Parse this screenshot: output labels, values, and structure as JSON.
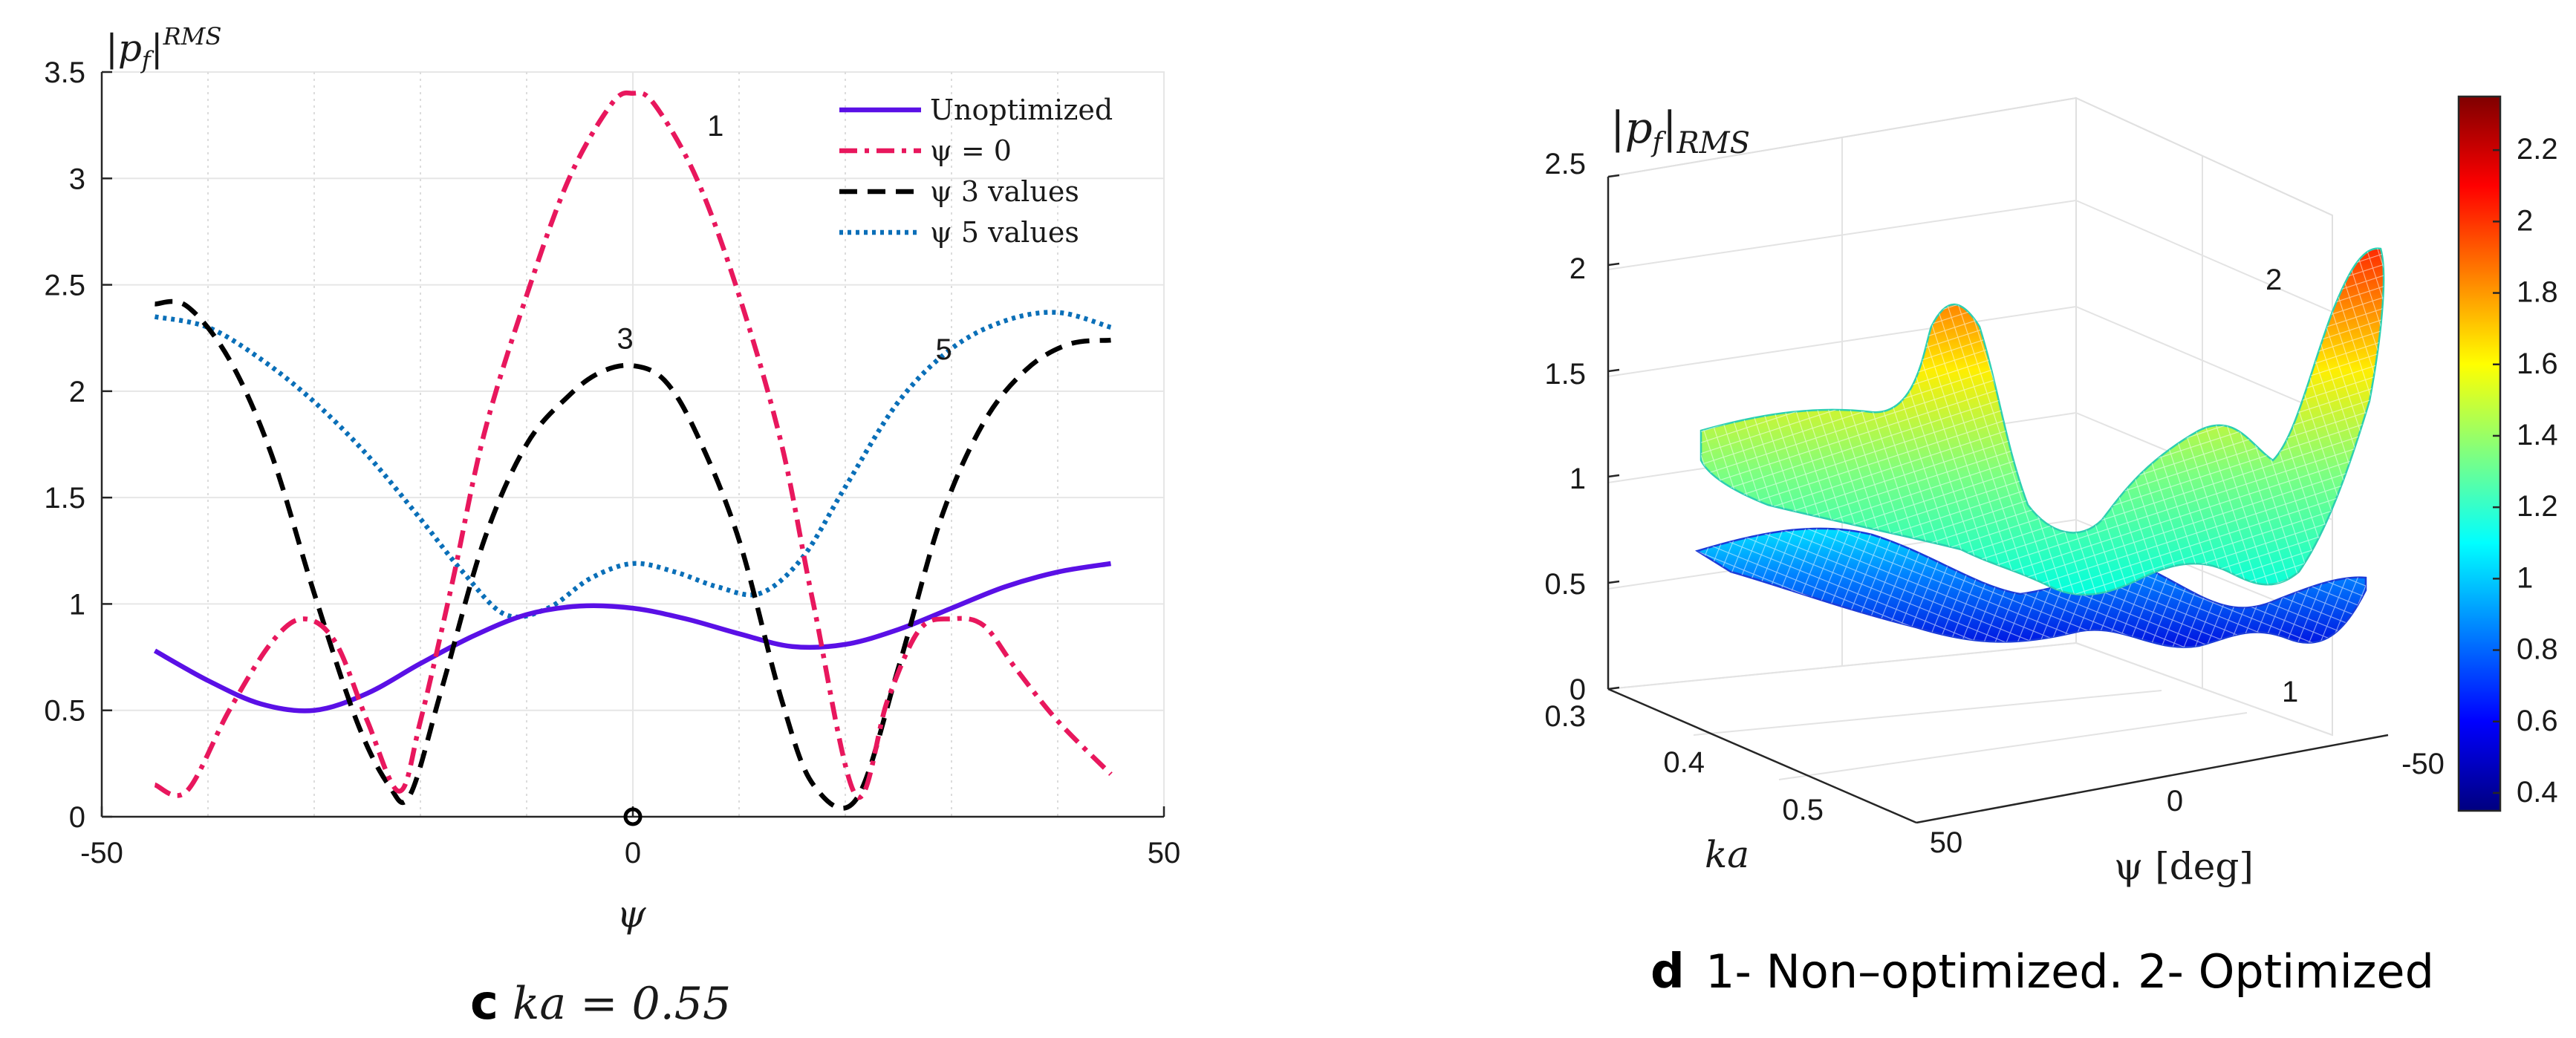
{
  "chart_data": [
    {
      "type": "line",
      "panel_letter": "c",
      "caption": "ka = 0.55",
      "ylabel": "|p_f|^{RMS}",
      "xlabel": "ψ",
      "xlim": [
        -50,
        50
      ],
      "ylim": [
        0,
        3.5
      ],
      "xticks": [
        "-50",
        "0",
        "50"
      ],
      "yticks": [
        "0",
        "0.5",
        "1",
        "1.5",
        "2",
        "2.5",
        "3",
        "3.5"
      ],
      "grid": true,
      "legend": {
        "position": "top-right",
        "entries": [
          "Unoptimized",
          "ψ = 0",
          "ψ 3 values",
          "ψ 5 values"
        ]
      },
      "annotations": [
        {
          "label": "1",
          "x": 7,
          "y": 3.2
        },
        {
          "label": "3",
          "x": -1.5,
          "y": 2.2
        },
        {
          "label": "5",
          "x": 28.5,
          "y": 2.15
        }
      ],
      "marker": {
        "x": 0,
        "y": 0
      },
      "series": [
        {
          "name": "Unoptimized",
          "color": "#5a10e6",
          "dash": "solid",
          "x": [
            -45,
            -40,
            -35,
            -30,
            -25,
            -20,
            -15,
            -10,
            -5,
            0,
            5,
            10,
            15,
            20,
            25,
            30,
            35,
            40,
            45
          ],
          "y": [
            0.78,
            0.64,
            0.53,
            0.5,
            0.58,
            0.72,
            0.85,
            0.95,
            0.99,
            0.98,
            0.93,
            0.86,
            0.8,
            0.81,
            0.88,
            0.98,
            1.08,
            1.15,
            1.19
          ]
        },
        {
          "name": "ψ = 0",
          "color": "#e8175d",
          "dash": "dashdot",
          "x": [
            -45,
            -42,
            -38,
            -34,
            -31,
            -28,
            -25,
            -22,
            -20,
            -17,
            -14,
            -10,
            -6,
            -2,
            0,
            2,
            6,
            10,
            14,
            17,
            21,
            24,
            27,
            30,
            33,
            36,
            40,
            45
          ],
          "y": [
            0.15,
            0.12,
            0.5,
            0.82,
            0.93,
            0.82,
            0.45,
            0.12,
            0.45,
            1.1,
            1.8,
            2.45,
            3.0,
            3.35,
            3.4,
            3.35,
            3.0,
            2.45,
            1.75,
            1.0,
            0.1,
            0.55,
            0.88,
            0.93,
            0.9,
            0.7,
            0.45,
            0.2
          ]
        },
        {
          "name": "ψ 3 values",
          "color": "#000000",
          "dash": "dashed",
          "x": [
            -45,
            -42,
            -38,
            -34,
            -30,
            -26,
            -23,
            -21,
            -18,
            -14,
            -10,
            -6,
            -3,
            0,
            3,
            6,
            10,
            14,
            17,
            21,
            25,
            29,
            33,
            37,
            41,
            45
          ],
          "y": [
            2.41,
            2.4,
            2.15,
            1.7,
            1.05,
            0.45,
            0.15,
            0.1,
            0.6,
            1.3,
            1.75,
            1.98,
            2.09,
            2.12,
            2.05,
            1.8,
            1.3,
            0.55,
            0.15,
            0.08,
            0.7,
            1.4,
            1.85,
            2.1,
            2.22,
            2.24
          ]
        },
        {
          "name": "ψ 5 values",
          "color": "#0a6fb8",
          "dash": "dotted",
          "x": [
            -45,
            -40,
            -35,
            -30,
            -25,
            -20,
            -16,
            -12,
            -8,
            -4,
            0,
            4,
            8,
            12,
            16,
            20,
            25,
            30,
            35,
            40,
            45
          ],
          "y": [
            2.35,
            2.3,
            2.15,
            1.95,
            1.7,
            1.4,
            1.15,
            0.95,
            0.98,
            1.12,
            1.19,
            1.15,
            1.08,
            1.05,
            1.22,
            1.55,
            1.95,
            2.2,
            2.33,
            2.37,
            2.3
          ]
        }
      ]
    },
    {
      "type": "surface",
      "panel_letter": "d",
      "caption": "1- Non–optimized. 2- Optimized",
      "zlabel": "|p_f|_{RMS}",
      "xlabel": "ψ [deg]",
      "ylabel": "ka",
      "zlim": [
        0,
        2.5
      ],
      "zticks": [
        "0",
        "0.5",
        "1",
        "1.5",
        "2",
        "2.5"
      ],
      "ka_ticks": [
        "0.3",
        "0.4",
        "0.5"
      ],
      "psi_ticks": [
        "50",
        "0",
        "-50"
      ],
      "colorbar": {
        "min": 0.35,
        "max": 2.35,
        "ticks": [
          "0.4",
          "0.6",
          "0.8",
          "1",
          "1.2",
          "1.4",
          "1.6",
          "1.8",
          "2",
          "2.2"
        ]
      },
      "surface_labels": [
        "2",
        "1"
      ]
    }
  ]
}
